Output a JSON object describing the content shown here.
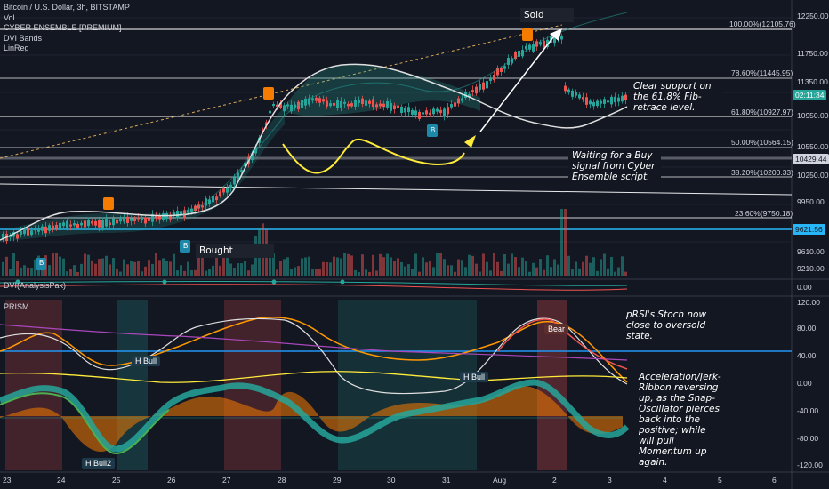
{
  "legend": {
    "title": "Bitcoin / U.S. Dollar, 3h, BITSTAMP",
    "vol": "Vol",
    "cyber": "CYBER ENSEMBLE [PREMIUM]",
    "dvi_bands": "DVI Bands",
    "linreg": "LinReg"
  },
  "panes": {
    "dvi": "DVI(AnalysisPak)",
    "prism": "PRISM"
  },
  "price_axis": [
    "12250.00",
    "11750.00",
    "11350.00",
    "10950.00",
    "10550.00",
    "10250.00",
    "9950.00",
    "9610.00",
    "9210.00"
  ],
  "dvi_axis": [
    "0.00"
  ],
  "prism_axis": [
    "120.00",
    "80.00",
    "40.00",
    "0.00",
    "-40.00",
    "-80.00",
    "-120.00"
  ],
  "badges": {
    "time": "02:11:34",
    "price1": "10429.44",
    "price2": "9621.56"
  },
  "fib_levels": [
    {
      "label": "100.00%(12105.76)"
    },
    {
      "label": "78.60%(11445.95)"
    },
    {
      "label": "61.80%(10927.97)"
    },
    {
      "label": "50.00%(10564.15)"
    },
    {
      "label": "38.20%(10200.33)"
    },
    {
      "label": "23.60%(9750.18)"
    }
  ],
  "x_axis": [
    "23",
    "24",
    "25",
    "26",
    "27",
    "28",
    "29",
    "30",
    "31",
    "Aug",
    "2",
    "3",
    "4",
    "5",
    "6"
  ],
  "annotations": {
    "sold": "Sold",
    "bought": "Bought",
    "support": "Clear support on the 61.8% Fib-retrace level.",
    "waiting": "Waiting for a Buy signal from Cyber Ensemble script.",
    "prsi": "pRSI's Stoch now close to oversold state.",
    "accel": "Acceleration/Jerk-Ribbon reversing up, as the Snap-Oscillator pierces back into the positive; while will pull Momentum up again."
  },
  "signals": {
    "hbull1": "H Bull",
    "hbull2": "H Bull",
    "hbull3": "H Bull2",
    "bear": "Bear",
    "b1": "B",
    "b2": "B",
    "b3": "B"
  },
  "colors": {
    "background": "#131722",
    "bull": "#26a69a",
    "bear": "#ef5350",
    "annotation_yellow": "#ffeb3b",
    "buy_label": "#1e88a8",
    "sell_label": "#f57c00"
  }
}
